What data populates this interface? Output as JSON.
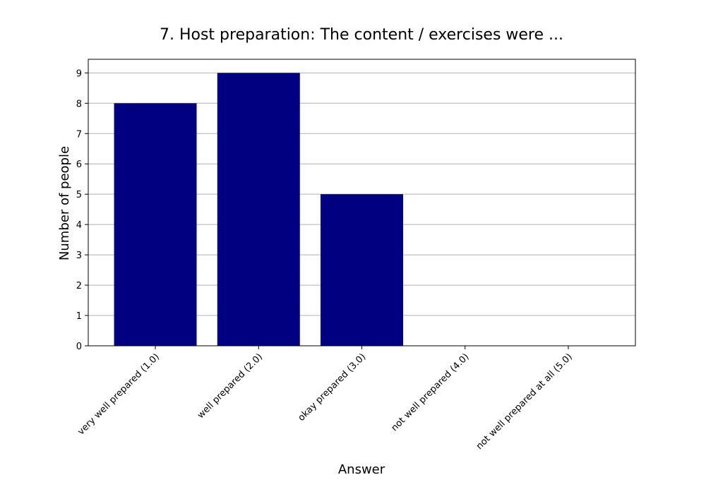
{
  "chart_data": {
    "type": "bar",
    "title": "7. Host preparation: The content / exercises were ...",
    "xlabel": "Answer",
    "ylabel": "Number of people",
    "categories": [
      "very well prepared (1.0)",
      "well prepared (2.0)",
      "okay prepared (3.0)",
      "not well prepared (4.0)",
      "not well prepared at all (5.0)"
    ],
    "values": [
      8,
      9,
      5,
      0,
      0
    ],
    "ylim": [
      0,
      9.45
    ],
    "yticks": [
      0,
      1,
      2,
      3,
      4,
      5,
      6,
      7,
      8,
      9
    ],
    "grid": "horizontal",
    "bar_color": "#000080",
    "grid_color": "#b0b0b0"
  }
}
